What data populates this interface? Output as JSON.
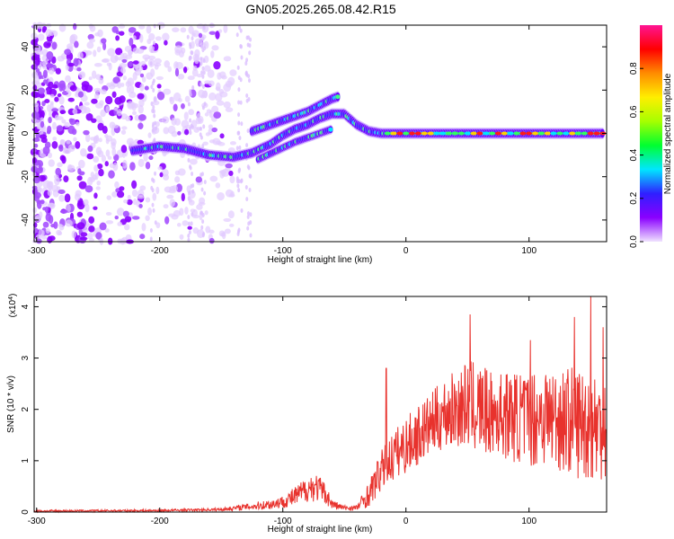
{
  "title": "GN05.2025.265.08.42.R15",
  "chart_data": [
    {
      "type": "heatmap",
      "title": "GN05.2025.265.08.42.R15",
      "xlabel": "Height of straight line (km)",
      "ylabel": "Frequency (Hz)",
      "xlim": [
        -302,
        163
      ],
      "ylim": [
        -50,
        50
      ],
      "xticks": [
        -300,
        -200,
        -100,
        0,
        100
      ],
      "yticks": [
        -40,
        -20,
        0,
        20,
        40
      ],
      "grid": false,
      "colorbar": {
        "label": "Normalized spectral amplitude",
        "range": [
          0,
          1
        ],
        "ticks": [
          "0.0",
          "0.2",
          "0.4",
          "0.6",
          "0.8"
        ],
        "colors": [
          "#f0e2ff",
          "#8a00ff",
          "#2f1fff",
          "#00e6ff",
          "#00ff30",
          "#a6ff00",
          "#ffee00",
          "#ff8c00",
          "#ff0000",
          "#ff1493"
        ]
      },
      "ridge": {
        "main_track": [
          [
            -222,
            -8
          ],
          [
            -200,
            -6
          ],
          [
            -180,
            -7
          ],
          [
            -160,
            -10
          ],
          [
            -140,
            -11
          ],
          [
            -125,
            -9
          ],
          [
            -110,
            -5
          ],
          [
            -100,
            -1
          ],
          [
            -90,
            2
          ],
          [
            -80,
            4
          ],
          [
            -70,
            7
          ],
          [
            -60,
            9
          ],
          [
            -50,
            9
          ],
          [
            -40,
            4
          ],
          [
            -30,
            1
          ],
          [
            -20,
            0
          ],
          [
            0,
            0
          ],
          [
            50,
            0
          ],
          [
            100,
            0
          ],
          [
            160,
            0
          ]
        ],
        "upper_track": [
          [
            -125,
            1
          ],
          [
            -110,
            4
          ],
          [
            -95,
            7
          ],
          [
            -80,
            10
          ],
          [
            -70,
            13
          ],
          [
            -60,
            16
          ],
          [
            -55,
            17
          ]
        ],
        "lower_track": [
          [
            -120,
            -12
          ],
          [
            -105,
            -8
          ],
          [
            -90,
            -4
          ],
          [
            -75,
            -1
          ],
          [
            -60,
            2
          ]
        ]
      },
      "noise_region_x": [
        -302,
        -140
      ]
    },
    {
      "type": "line",
      "xlabel": "Height of straight line (km)",
      "ylabel": "SNR (10 * v/v)",
      "y_multiplier": "(x10^4)",
      "xlim": [
        -302,
        163
      ],
      "ylim": [
        0,
        4.2
      ],
      "xticks": [
        -300,
        -200,
        -100,
        0,
        100
      ],
      "yticks": [
        0,
        1,
        2,
        3,
        4
      ],
      "grid": false,
      "color": "#e8322d",
      "envelope": {
        "x": [
          -302,
          -200,
          -150,
          -130,
          -110,
          -100,
          -90,
          -80,
          -75,
          -70,
          -65,
          -60,
          -50,
          -40,
          -30,
          -20,
          -10,
          0,
          10,
          20,
          30,
          40,
          50,
          60,
          70,
          80,
          90,
          100,
          110,
          120,
          130,
          140,
          150,
          163
        ],
        "mean": [
          0.02,
          0.03,
          0.05,
          0.1,
          0.15,
          0.2,
          0.3,
          0.45,
          0.5,
          0.45,
          0.35,
          0.15,
          0.08,
          0.08,
          0.35,
          0.8,
          1.1,
          1.3,
          1.5,
          1.7,
          1.9,
          2.0,
          2.1,
          2.0,
          1.9,
          1.9,
          1.85,
          1.8,
          1.9,
          1.85,
          1.8,
          1.75,
          1.7,
          1.6
        ],
        "amp": [
          0.02,
          0.02,
          0.03,
          0.06,
          0.1,
          0.12,
          0.2,
          0.25,
          0.3,
          0.25,
          0.2,
          0.1,
          0.05,
          0.06,
          0.25,
          0.4,
          0.5,
          0.55,
          0.6,
          0.6,
          0.7,
          0.75,
          0.85,
          0.9,
          0.8,
          0.85,
          0.9,
          0.95,
          1.0,
          1.0,
          1.05,
          1.1,
          1.1,
          1.1
        ]
      },
      "peaks": [
        [
          -16,
          2.8
        ],
        [
          52,
          3.85
        ],
        [
          101,
          3.35
        ],
        [
          137,
          3.8
        ],
        [
          150,
          4.2
        ],
        [
          160,
          3.6
        ]
      ]
    }
  ]
}
